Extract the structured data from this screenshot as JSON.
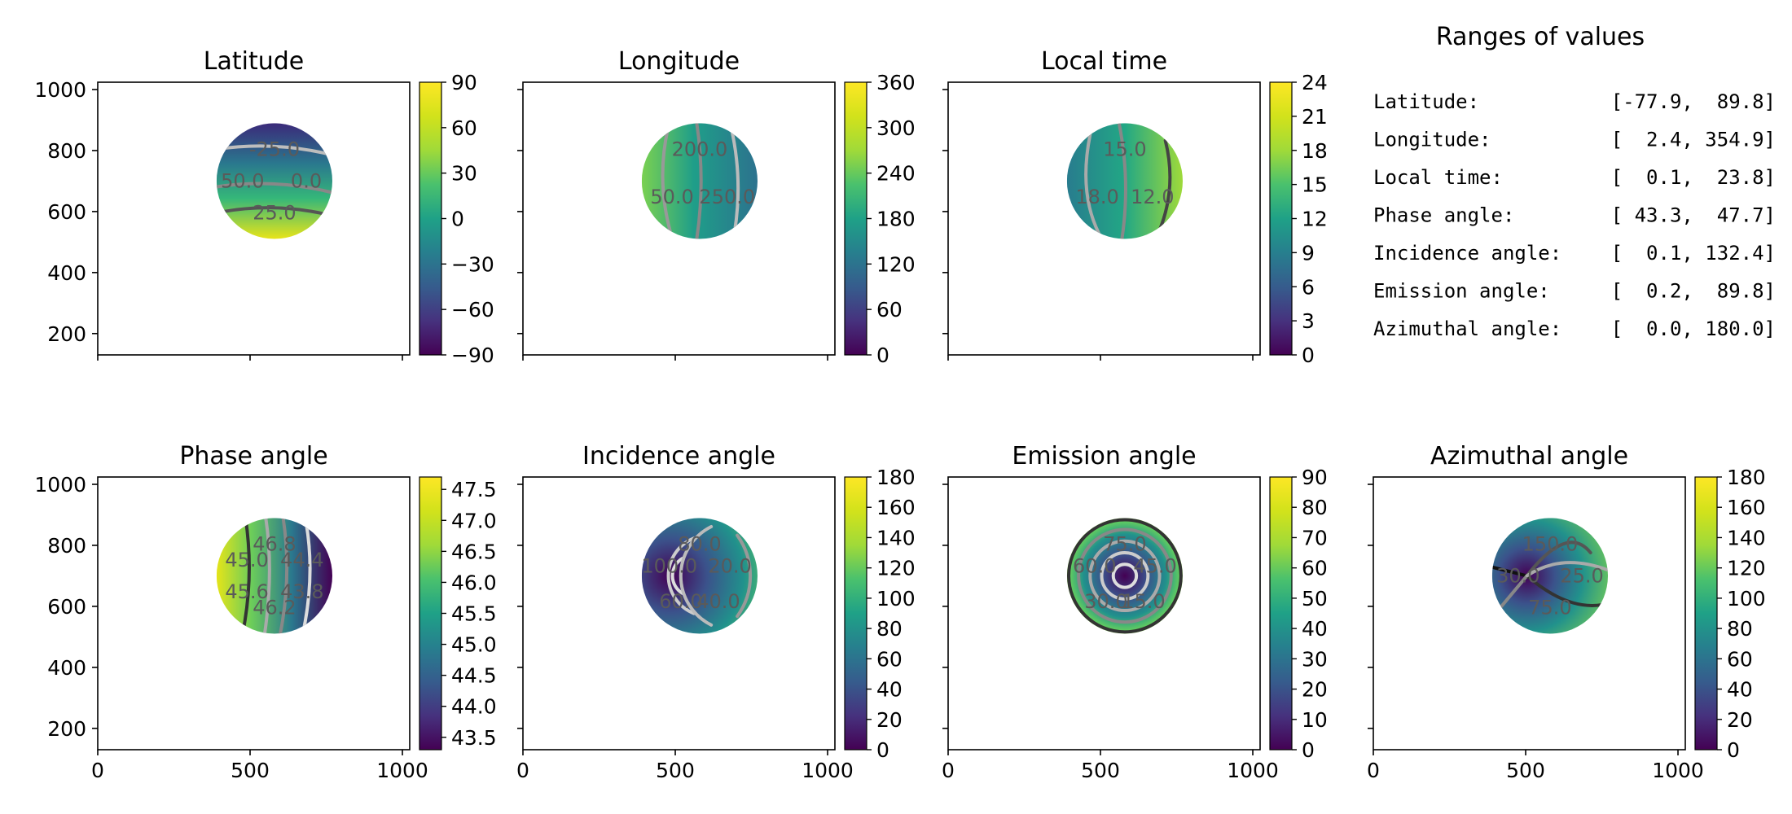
{
  "figure": {
    "ranges_title": "Ranges of values",
    "ranges": [
      {
        "label": "Latitude:",
        "value": "[-77.9,  89.8]"
      },
      {
        "label": "Longitude:",
        "value": "[  2.4, 354.9]"
      },
      {
        "label": "Local time:",
        "value": "[  0.1,  23.8]"
      },
      {
        "label": "Phase angle:",
        "value": "[ 43.3,  47.7]"
      },
      {
        "label": "Incidence angle:",
        "value": "[  0.1, 132.4]"
      },
      {
        "label": "Emission angle:",
        "value": "[  0.2,  89.8]"
      },
      {
        "label": "Azimuthal angle:",
        "value": "[  0.0, 180.0]"
      }
    ]
  },
  "chart_data": [
    {
      "type": "heatmap",
      "title": "Latitude",
      "xlim": [
        0,
        1024
      ],
      "ylim": [
        130,
        1024
      ],
      "xticks": [
        0,
        500,
        1000
      ],
      "yticks": [
        200,
        400,
        600,
        800,
        1000
      ],
      "disk": {
        "cx": 580,
        "cy": 700,
        "r": 190
      },
      "colorbar": {
        "min": -90,
        "max": 90,
        "ticks": [
          "90",
          "60",
          "30",
          "0",
          "−30",
          "−60",
          "−90"
        ]
      },
      "contour_labels": [
        "-25.0",
        "0.0",
        "25.0",
        "50.0"
      ],
      "xticklabels_visible": false,
      "yticklabels_visible": true
    },
    {
      "type": "heatmap",
      "title": "Longitude",
      "xlim": [
        0,
        1024
      ],
      "ylim": [
        130,
        1024
      ],
      "xticks": [
        0,
        500,
        1000
      ],
      "yticks": [
        200,
        400,
        600,
        800,
        1000
      ],
      "disk": {
        "cx": 580,
        "cy": 700,
        "r": 190
      },
      "colorbar": {
        "min": 0,
        "max": 360,
        "ticks": [
          "360",
          "300",
          "240",
          "180",
          "120",
          "60",
          "0"
        ]
      },
      "contour_labels": [
        "200.0",
        "250.0",
        "50.0"
      ],
      "xticklabels_visible": false,
      "yticklabels_visible": false
    },
    {
      "type": "heatmap",
      "title": "Local time",
      "xlim": [
        0,
        1024
      ],
      "ylim": [
        130,
        1024
      ],
      "xticks": [
        0,
        500,
        1000
      ],
      "yticks": [
        200,
        400,
        600,
        800,
        1000
      ],
      "disk": {
        "cx": 580,
        "cy": 700,
        "r": 190
      },
      "colorbar": {
        "min": 0,
        "max": 24,
        "ticks": [
          "24",
          "21",
          "18",
          "15",
          "12",
          "9",
          "6",
          "3",
          "0"
        ]
      },
      "contour_labels": [
        "15.0",
        "12.0",
        "18.0"
      ],
      "xticklabels_visible": false,
      "yticklabels_visible": false
    },
    {
      "type": "heatmap",
      "title": "Phase angle",
      "xlim": [
        0,
        1024
      ],
      "ylim": [
        130,
        1024
      ],
      "xticks": [
        0,
        500,
        1000
      ],
      "yticks": [
        200,
        400,
        600,
        800,
        1000
      ],
      "disk": {
        "cx": 580,
        "cy": 700,
        "r": 190
      },
      "colorbar": {
        "min": 43.3,
        "max": 47.7,
        "ticks": [
          "47.5",
          "47.0",
          "46.5",
          "46.0",
          "45.5",
          "45.0",
          "44.5",
          "44.0",
          "43.5"
        ]
      },
      "contour_labels": [
        "46.8",
        "44.4",
        "43.8",
        "46.2",
        "45.6",
        "45.0"
      ],
      "xticklabels_visible": true,
      "yticklabels_visible": true
    },
    {
      "type": "heatmap",
      "title": "Incidence angle",
      "xlim": [
        0,
        1024
      ],
      "ylim": [
        130,
        1024
      ],
      "xticks": [
        0,
        500,
        1000
      ],
      "yticks": [
        200,
        400,
        600,
        800,
        1000
      ],
      "disk": {
        "cx": 580,
        "cy": 700,
        "r": 190
      },
      "colorbar": {
        "min": 0,
        "max": 180,
        "ticks": [
          "180",
          "160",
          "140",
          "120",
          "100",
          "80",
          "60",
          "40",
          "20",
          "0"
        ]
      },
      "contour_labels": [
        "80.0",
        "20.0",
        "40.0",
        "60.0",
        "100.0"
      ],
      "xticklabels_visible": true,
      "yticklabels_visible": false
    },
    {
      "type": "heatmap",
      "title": "Emission angle",
      "xlim": [
        0,
        1024
      ],
      "ylim": [
        130,
        1024
      ],
      "xticks": [
        0,
        500,
        1000
      ],
      "yticks": [
        200,
        400,
        600,
        800,
        1000
      ],
      "disk": {
        "cx": 580,
        "cy": 700,
        "r": 190
      },
      "colorbar": {
        "min": 0,
        "max": 90,
        "ticks": [
          "90",
          "80",
          "70",
          "60",
          "50",
          "40",
          "30",
          "20",
          "10",
          "0"
        ]
      },
      "contour_labels": [
        "75.0",
        "45.0",
        "15.0",
        "30.0",
        "60.0"
      ],
      "xticklabels_visible": true,
      "yticklabels_visible": false
    },
    {
      "type": "heatmap",
      "title": "Azimuthal angle",
      "xlim": [
        0,
        1024
      ],
      "ylim": [
        130,
        1024
      ],
      "xticks": [
        0,
        500,
        1000
      ],
      "yticks": [
        200,
        400,
        600,
        800,
        1000
      ],
      "disk": {
        "cx": 580,
        "cy": 700,
        "r": 190
      },
      "colorbar": {
        "min": 0,
        "max": 180,
        "ticks": [
          "180",
          "160",
          "140",
          "120",
          "100",
          "80",
          "60",
          "40",
          "20",
          "0"
        ]
      },
      "contour_labels": [
        "150.0",
        "25.0",
        "75.0",
        "30.0"
      ],
      "xticklabels_visible": true,
      "yticklabels_visible": false
    }
  ]
}
